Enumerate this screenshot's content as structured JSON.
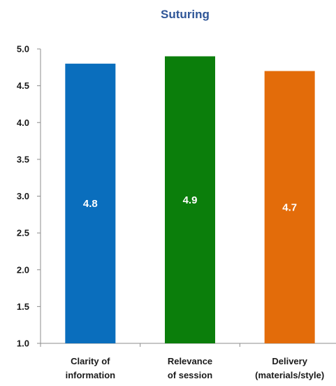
{
  "chart_data": {
    "type": "bar",
    "title": "Suturing",
    "categories": [
      [
        "Clarity of",
        "information"
      ],
      [
        "Relevance",
        "of session"
      ],
      [
        "Delivery",
        "(materials/style)"
      ]
    ],
    "values": [
      4.8,
      4.9,
      4.7
    ],
    "data_labels": [
      "4.8",
      "4.9",
      "4.7"
    ],
    "bar_colors": [
      "#0a6ebd",
      "#0b7e0b",
      "#e36c0a"
    ],
    "ylim": [
      1.0,
      5.0
    ],
    "yticks": [
      "1.0",
      "1.5",
      "2.0",
      "2.5",
      "3.0",
      "3.5",
      "4.0",
      "4.5",
      "5.0"
    ],
    "xlabel": "",
    "ylabel": "",
    "grid": false,
    "legend": "none",
    "title_color": "#2e5597"
  }
}
